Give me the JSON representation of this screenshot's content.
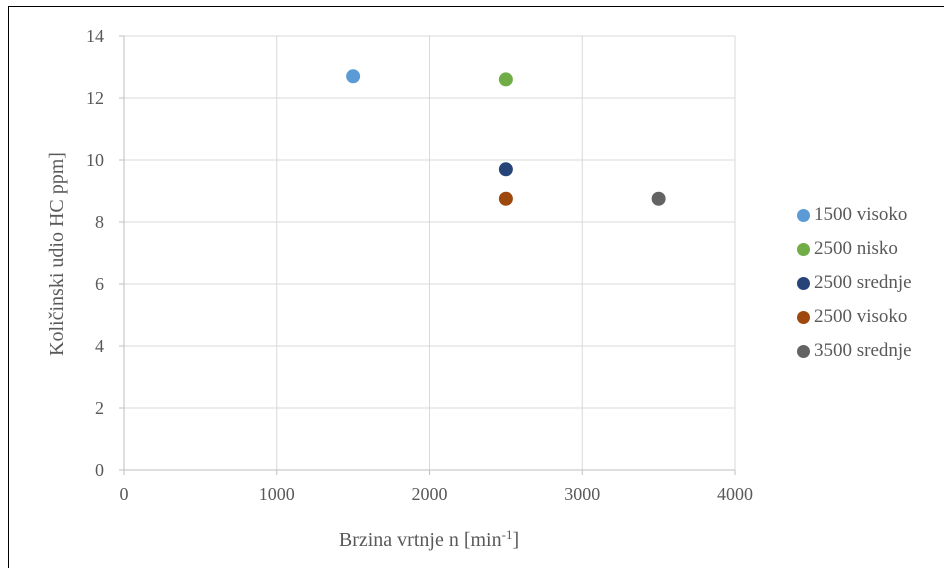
{
  "chart_data": {
    "type": "scatter",
    "xlabel": "Brzina vrtnje n [min",
    "xlabel_sup": "-1",
    "xlabel_end": "]",
    "ylabel": "Količinski udio HC ppm]",
    "xlim": [
      0,
      4000
    ],
    "ylim": [
      0,
      14
    ],
    "x_ticks": [
      0,
      1000,
      2000,
      3000,
      4000
    ],
    "y_ticks": [
      0,
      2,
      4,
      6,
      8,
      10,
      12,
      14
    ],
    "grid": true,
    "legend_position": "right",
    "series": [
      {
        "name": "1500 visoko",
        "color": "#5b9bd5",
        "points": [
          {
            "x": 1500,
            "y": 12.7
          }
        ]
      },
      {
        "name": "2500 nisko",
        "color": "#70ad47",
        "points": [
          {
            "x": 2500,
            "y": 12.6
          }
        ]
      },
      {
        "name": "2500 srednje",
        "color": "#264478",
        "points": [
          {
            "x": 2500,
            "y": 9.7
          }
        ]
      },
      {
        "name": "2500 visoko",
        "color": "#9e480e",
        "points": [
          {
            "x": 2500,
            "y": 8.75
          }
        ]
      },
      {
        "name": "3500 srednje",
        "color": "#636363",
        "points": [
          {
            "x": 3500,
            "y": 8.75
          }
        ]
      }
    ]
  }
}
